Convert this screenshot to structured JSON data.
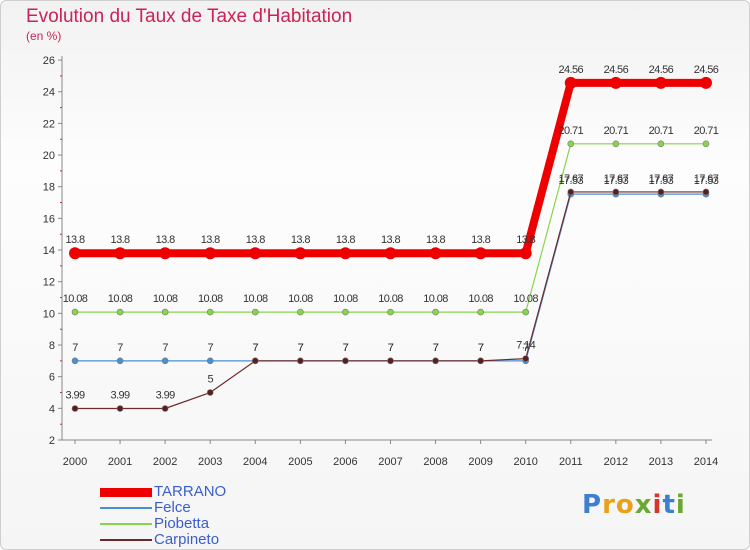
{
  "title": "Evolution du Taux de Taxe d'Habitation",
  "subtitle": "(en %)",
  "logo_text": "Proxiti",
  "chart_data": {
    "type": "line",
    "title": "Evolution du Taux de Taxe d'Habitation",
    "ylabel": "(en %)",
    "xlabel": "",
    "x": [
      "2000",
      "2001",
      "2002",
      "2003",
      "2004",
      "2005",
      "2006",
      "2007",
      "2008",
      "2009",
      "2010",
      "2011",
      "2012",
      "2013",
      "2014"
    ],
    "ylim": [
      2,
      26
    ],
    "yticks": [
      2,
      4,
      6,
      8,
      10,
      12,
      14,
      16,
      18,
      20,
      22,
      24,
      26
    ],
    "grid": false,
    "legend_position": "bottom-left",
    "series": [
      {
        "name": "TARRANO",
        "color": "#ee0000",
        "values": [
          13.8,
          13.8,
          13.8,
          13.8,
          13.8,
          13.8,
          13.8,
          13.8,
          13.8,
          13.8,
          13.8,
          24.56,
          24.56,
          24.56,
          24.56
        ],
        "labels": [
          "13.8",
          "13.8",
          "13.8",
          "13.8",
          "13.8",
          "13.8",
          "13.8",
          "13.8",
          "13.8",
          "13.8",
          "13.8",
          "24.56",
          "24.56",
          "24.56",
          "24.56"
        ]
      },
      {
        "name": "Felce",
        "color": "#4a8fcf",
        "values": [
          7,
          7,
          7,
          7,
          7,
          7,
          7,
          7,
          7,
          7,
          7,
          17.53,
          17.53,
          17.53,
          17.53
        ],
        "labels": [
          "7",
          "7",
          "7",
          "7",
          "7",
          "7",
          "7",
          "7",
          "7",
          "7",
          "7",
          "17.53",
          "17.53",
          "17.53",
          "17.53"
        ]
      },
      {
        "name": "Piobetta",
        "color": "#88d44a",
        "values": [
          10.08,
          10.08,
          10.08,
          10.08,
          10.08,
          10.08,
          10.08,
          10.08,
          10.08,
          10.08,
          10.08,
          20.71,
          20.71,
          20.71,
          20.71
        ],
        "labels": [
          "10.08",
          "10.08",
          "10.08",
          "10.08",
          "10.08",
          "10.08",
          "10.08",
          "10.08",
          "10.08",
          "10.08",
          "10.08",
          "20.71",
          "20.71",
          "20.71",
          "20.71"
        ]
      },
      {
        "name": "Carpineto",
        "color": "#6e2a2a",
        "values": [
          3.99,
          3.99,
          3.99,
          5,
          7,
          7,
          7,
          7,
          7,
          7,
          7.14,
          17.67,
          17.67,
          17.67,
          17.67
        ],
        "labels": [
          "3.99",
          "3.99",
          "3.99",
          "5",
          "7",
          "7",
          "7",
          "7",
          "7",
          "7",
          "7.14",
          "17.67",
          "17.67",
          "17.67",
          "17.67"
        ]
      }
    ]
  }
}
